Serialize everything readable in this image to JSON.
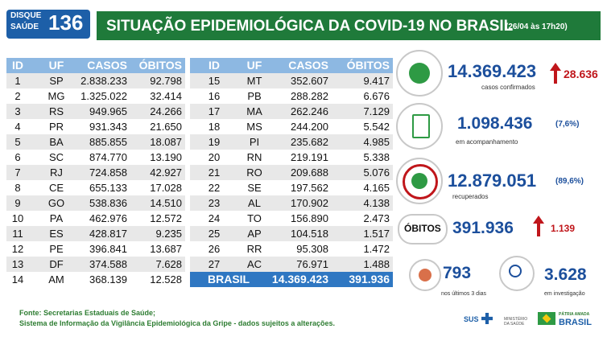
{
  "header": {
    "logo_line1": "DISQUE",
    "logo_line2": "SAÚDE",
    "logo_number": "136",
    "title": "SITUAÇÃO EPIDEMIOLÓGICA DA COVID-19 NO BRASIL",
    "timestamp": "(26/04 às 17h20)"
  },
  "tables": [
    {
      "columns": [
        "ID",
        "UF",
        "CASOS",
        "ÓBITOS"
      ],
      "rows": [
        [
          "1",
          "SP",
          "2.838.233",
          "92.798"
        ],
        [
          "2",
          "MG",
          "1.325.022",
          "32.414"
        ],
        [
          "3",
          "RS",
          "949.965",
          "24.266"
        ],
        [
          "4",
          "PR",
          "931.343",
          "21.650"
        ],
        [
          "5",
          "BA",
          "885.855",
          "18.087"
        ],
        [
          "6",
          "SC",
          "874.770",
          "13.190"
        ],
        [
          "7",
          "RJ",
          "724.858",
          "42.927"
        ],
        [
          "8",
          "CE",
          "655.133",
          "17.028"
        ],
        [
          "9",
          "GO",
          "538.836",
          "14.510"
        ],
        [
          "10",
          "PA",
          "462.976",
          "12.572"
        ],
        [
          "11",
          "ES",
          "428.817",
          "9.235"
        ],
        [
          "12",
          "PE",
          "396.841",
          "13.687"
        ],
        [
          "13",
          "DF",
          "374.588",
          "7.628"
        ],
        [
          "14",
          "AM",
          "368.139",
          "12.528"
        ]
      ]
    },
    {
      "columns": [
        "ID",
        "UF",
        "CASOS",
        "ÓBITOS"
      ],
      "rows": [
        [
          "15",
          "MT",
          "352.607",
          "9.417"
        ],
        [
          "16",
          "PB",
          "288.282",
          "6.676"
        ],
        [
          "17",
          "MA",
          "262.246",
          "7.129"
        ],
        [
          "18",
          "MS",
          "244.200",
          "5.542"
        ],
        [
          "19",
          "PI",
          "235.682",
          "4.985"
        ],
        [
          "20",
          "RN",
          "219.191",
          "5.338"
        ],
        [
          "21",
          "RO",
          "209.688",
          "5.076"
        ],
        [
          "22",
          "SE",
          "197.562",
          "4.165"
        ],
        [
          "23",
          "AL",
          "170.902",
          "4.138"
        ],
        [
          "24",
          "TO",
          "156.890",
          "2.473"
        ],
        [
          "25",
          "AP",
          "104.518",
          "1.517"
        ],
        [
          "26",
          "RR",
          "95.308",
          "1.472"
        ],
        [
          "27",
          "AC",
          "76.971",
          "1.488"
        ]
      ],
      "total": {
        "label": "BRASIL",
        "cases": "14.369.423",
        "deaths": "391.936"
      }
    }
  ],
  "stats": {
    "confirmed": {
      "value": "14.369.423",
      "change": "28.636",
      "label": "casos confirmados"
    },
    "monitoring": {
      "value": "1.098.436",
      "pct": "(7,6%)",
      "label": "em acompanhamento"
    },
    "recovered": {
      "value": "12.879.051",
      "pct": "(89,6%)",
      "label": "recuperados"
    },
    "deaths": {
      "label": "ÓBITOS",
      "value": "391.936",
      "change": "1.139"
    },
    "recent": {
      "value": "793",
      "label": "nos últimos 3 dias"
    },
    "investigating": {
      "value": "3.628",
      "label": "em investigação"
    }
  },
  "footer": {
    "line1": "Fonte: Secretarias Estaduais de Saúde;",
    "line2": "Sistema de Informação da Vigilância Epidemiológica da Gripe - dados sujeitos a alterações."
  },
  "logos": {
    "sus": "SUS",
    "ministry": "MINISTÉRIO DA SAÚDE",
    "motto": "PÁTRIA AMADA",
    "country": "BRASIL"
  }
}
